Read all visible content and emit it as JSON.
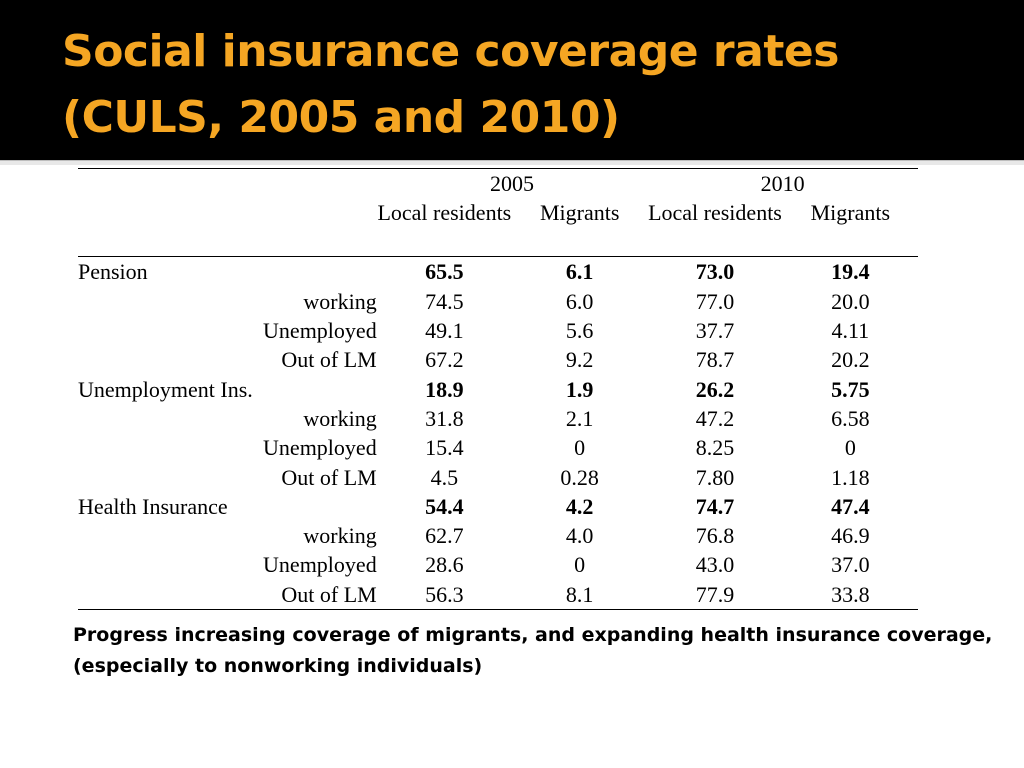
{
  "title": {
    "line1": "Social insurance coverage rates",
    "line2": "(CULS, 2005 and 2010)"
  },
  "table": {
    "years": [
      "2005",
      "2010"
    ],
    "subheaders": [
      "Local residents",
      "Migrants",
      "Local residents",
      "Migrants"
    ],
    "groups": [
      {
        "name": "Pension",
        "values": [
          "65.5",
          "6.1",
          "73.0",
          "19.4"
        ],
        "rows": [
          {
            "label": "working",
            "values": [
              "74.5",
              "6.0",
              "77.0",
              "20.0"
            ]
          },
          {
            "label": "Unemployed",
            "values": [
              "49.1",
              "5.6",
              "37.7",
              "4.11"
            ]
          },
          {
            "label": "Out of LM",
            "values": [
              "67.2",
              "9.2",
              "78.7",
              "20.2"
            ]
          }
        ]
      },
      {
        "name": "Unemployment Ins.",
        "values": [
          "18.9",
          "1.9",
          "26.2",
          "5.75"
        ],
        "rows": [
          {
            "label": "working",
            "values": [
              "31.8",
              "2.1",
              "47.2",
              "6.58"
            ]
          },
          {
            "label": "Unemployed",
            "values": [
              "15.4",
              "0",
              "8.25",
              "0"
            ]
          },
          {
            "label": "Out of LM",
            "values": [
              "4.5",
              "0.28",
              "7.80",
              "1.18"
            ]
          }
        ]
      },
      {
        "name": "Health Insurance",
        "values": [
          "54.4",
          "4.2",
          "74.7",
          "47.4"
        ],
        "rows": [
          {
            "label": "working",
            "values": [
              "62.7",
              "4.0",
              "76.8",
              "46.9"
            ]
          },
          {
            "label": "Unemployed",
            "values": [
              "28.6",
              "0",
              "43.0",
              "37.0"
            ]
          },
          {
            "label": "Out of LM",
            "values": [
              "56.3",
              "8.1",
              "77.9",
              "33.8"
            ]
          }
        ]
      }
    ]
  },
  "footnote": {
    "line1": "Progress increasing coverage of migrants, and expanding health insurance coverage,",
    "line2": "(especially to nonworking  individuals)"
  }
}
